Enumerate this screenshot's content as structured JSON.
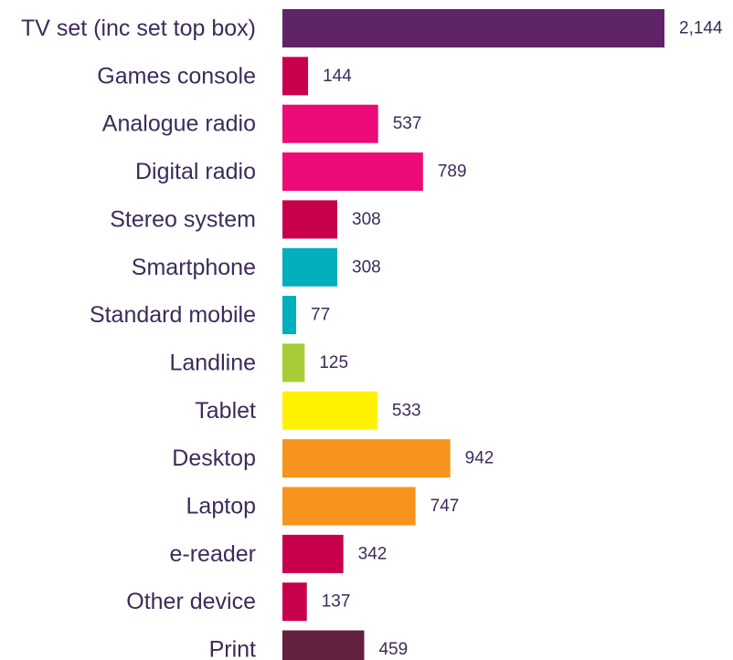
{
  "chart_data": {
    "type": "bar",
    "orientation": "horizontal",
    "title": "",
    "xlabel": "",
    "ylabel": "",
    "categories": [
      "TV set (inc set top box)",
      "Games console",
      "Analogue radio",
      "Digital radio",
      "Stereo system",
      "Smartphone",
      "Standard mobile",
      "Landline",
      "Tablet",
      "Desktop",
      "Laptop",
      "e-reader",
      "Other device",
      "Print"
    ],
    "values": [
      2144,
      144,
      537,
      789,
      308,
      308,
      77,
      125,
      533,
      942,
      747,
      342,
      137,
      459
    ],
    "value_labels": [
      "2,144",
      "144",
      "537",
      "789",
      "308",
      "308",
      "77",
      "125",
      "533",
      "942",
      "747",
      "342",
      "137",
      "459"
    ],
    "colors": [
      "#5f2468",
      "#c8004b",
      "#ec0b77",
      "#ec0b77",
      "#c8004b",
      "#00aebc",
      "#00aebc",
      "#a6cd36",
      "#fff200",
      "#f7941d",
      "#f7941d",
      "#c8004b",
      "#c8004b",
      "#62213f"
    ],
    "xlim": [
      0,
      2144
    ],
    "grid": false,
    "legend": "none"
  }
}
